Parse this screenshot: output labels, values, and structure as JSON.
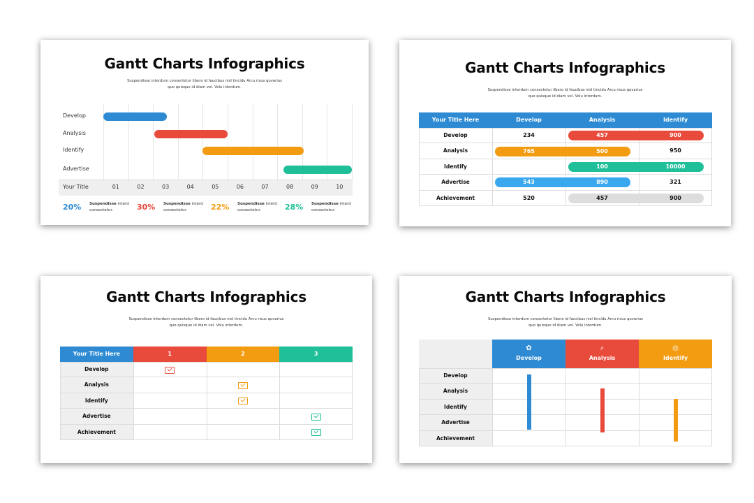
{
  "title": "Gantt Charts Infographics",
  "subtitle_line1": "Suspendisse interdum consectetur libero id faucibus nisl tincidu Arcu risus quvarius",
  "subtitle_line2": "quo quisque id diam vel. Volu interdum.",
  "colors": {
    "blue": "#2e8bd3",
    "red": "#e84a3c",
    "orange": "#f39c12",
    "teal": "#1fbf99",
    "gray": "#dddddd"
  },
  "slide1": {
    "rows": [
      "Develop",
      "Analysis",
      "Identify",
      "Advertise"
    ],
    "axis_label": "Your Title",
    "ticks": [
      "01",
      "02",
      "03",
      "04",
      "05",
      "06",
      "07",
      "08",
      "09",
      "10"
    ],
    "bars": [
      {
        "row": "Develop",
        "start": 0.0,
        "end": 2.55,
        "color": "#2e8bd3"
      },
      {
        "row": "Analysis",
        "start": 2.05,
        "end": 5.0,
        "color": "#e84a3c"
      },
      {
        "row": "Identify",
        "start": 4.0,
        "end": 8.05,
        "color": "#f39c12"
      },
      {
        "row": "Advertise",
        "start": 7.25,
        "end": 10.0,
        "color": "#1fbf99"
      }
    ],
    "stats": [
      {
        "pct": "20%",
        "bold": "Suspendisse",
        "rest": " interd",
        "line2": "consectetur.",
        "color": "#2e8bd3"
      },
      {
        "pct": "30%",
        "bold": "Suspendisse",
        "rest": " interd",
        "line2": "consectetur.",
        "color": "#e84a3c"
      },
      {
        "pct": "22%",
        "bold": "Suspendisse",
        "rest": " interd",
        "line2": "consectetur.",
        "color": "#f39c12"
      },
      {
        "pct": "28%",
        "bold": "Suspendisse",
        "rest": " interd",
        "line2": "consectetur.",
        "color": "#1fbf99"
      }
    ]
  },
  "slide2": {
    "headers": [
      "Your Title Here",
      "Develop",
      "Analysis",
      "Identify"
    ],
    "rows": [
      {
        "label": "Develop",
        "cells": [
          {
            "type": "text",
            "col": 1,
            "value": "234"
          },
          {
            "type": "pill",
            "from": 2,
            "to": 3,
            "color": "#e84a3c",
            "values": [
              {
                "col": 2,
                "value": "457"
              },
              {
                "col": 3,
                "value": "900"
              }
            ]
          }
        ]
      },
      {
        "label": "Analysis",
        "cells": [
          {
            "type": "pill",
            "from": 1,
            "to": 2,
            "color": "#f39c12",
            "values": [
              {
                "col": 1,
                "value": "765"
              },
              {
                "col": 2,
                "value": "500"
              }
            ]
          },
          {
            "type": "text",
            "col": 3,
            "value": "950"
          }
        ]
      },
      {
        "label": "Identify",
        "cells": [
          {
            "type": "pill",
            "from": 2,
            "to": 3,
            "color": "#1fbf99",
            "values": [
              {
                "col": 2,
                "value": "100"
              },
              {
                "col": 3,
                "value": "10000"
              }
            ]
          }
        ]
      },
      {
        "label": "Advertise",
        "cells": [
          {
            "type": "pill",
            "from": 1,
            "to": 2,
            "color": "#3aa8ee",
            "values": [
              {
                "col": 1,
                "value": "543"
              },
              {
                "col": 2,
                "value": "890"
              }
            ]
          },
          {
            "type": "text",
            "col": 3,
            "value": "321"
          }
        ]
      },
      {
        "label": "Achievement",
        "cells": [
          {
            "type": "text",
            "col": 1,
            "value": "520"
          },
          {
            "type": "pill",
            "from": 2,
            "to": 3,
            "color": "#dddddd",
            "dark": true,
            "values": [
              {
                "col": 2,
                "value": "457"
              },
              {
                "col": 3,
                "value": "900"
              }
            ]
          }
        ]
      }
    ]
  },
  "slide3": {
    "headers": [
      {
        "label": "Your Title Here",
        "color": "#2e8bd3"
      },
      {
        "label": "1",
        "color": "#e84a3c"
      },
      {
        "label": "2",
        "color": "#f39c12"
      },
      {
        "label": "3",
        "color": "#1fbf99"
      }
    ],
    "rows": [
      {
        "label": "Develop",
        "check_col": 1,
        "color": "#e84a3c"
      },
      {
        "label": "Analysis",
        "check_col": 2,
        "color": "#f39c12"
      },
      {
        "label": "Identify",
        "check_col": 2,
        "color": "#f39c12"
      },
      {
        "label": "Advertise",
        "check_col": 3,
        "color": "#1fbf99"
      },
      {
        "label": "Achievement",
        "check_col": 3,
        "color": "#1fbf99"
      }
    ]
  },
  "slide4": {
    "headers": [
      {
        "label": "Develop",
        "icon": "gear-icon",
        "glyph": "✿",
        "color": "#2e8bd3"
      },
      {
        "label": "Analysis",
        "icon": "magnifier-icon",
        "glyph": "⌕",
        "color": "#e84a3c"
      },
      {
        "label": "Identify",
        "icon": "target-icon",
        "glyph": "◎",
        "color": "#f39c12"
      }
    ],
    "rows": [
      "Develop",
      "Analysis",
      "Identify",
      "Advertise",
      "Achievement"
    ],
    "bars": [
      {
        "col": 0,
        "from": 0.4,
        "to": 3.95,
        "color": "#2e8bd3"
      },
      {
        "col": 1,
        "from": 1.3,
        "to": 4.1,
        "color": "#e84a3c"
      },
      {
        "col": 2,
        "from": 1.95,
        "to": 4.7,
        "color": "#f39c12"
      }
    ]
  }
}
